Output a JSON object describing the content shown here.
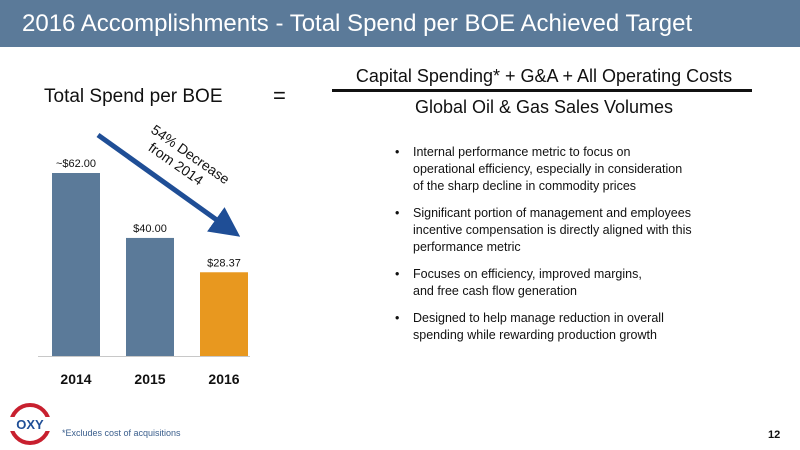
{
  "header": {
    "title": "2016 Accomplishments - Total Spend per BOE Achieved Target"
  },
  "formula": {
    "lhs": "Total Spend per BOE",
    "equals": "=",
    "numerator": "Capital Spending* + G&A + All Operating Costs",
    "denominator": "Global Oil & Gas Sales Volumes"
  },
  "chart_data": {
    "type": "bar",
    "title": "Total Spend per BOE",
    "categories": [
      "2014",
      "2015",
      "2016"
    ],
    "values": [
      62.0,
      40.0,
      28.37
    ],
    "value_labels": [
      "~$62.00",
      "$40.00",
      "$28.37"
    ],
    "colors": [
      "#5b7a99",
      "#5b7a99",
      "#e8981f"
    ],
    "annotation": "54% Decrease from 2014",
    "annotation_lines": [
      "54% Decrease",
      "from 2014"
    ],
    "arrow_color": "#1f4e96",
    "grid": false
  },
  "bullets": [
    [
      "Internal performance metric to focus on",
      "operational efficiency, especially in consideration",
      "of the sharp decline in commodity prices"
    ],
    [
      "Significant portion of management and employees",
      "incentive compensation is directly aligned with this",
      "performance metric"
    ],
    [
      "Focuses on efficiency, improved margins,",
      "and free cash flow generation"
    ],
    [
      "Designed to help manage reduction in overall",
      "spending while rewarding production growth"
    ]
  ],
  "bullet_marker": "•",
  "footnote": "*Excludes cost of acquisitions",
  "page_number": "12",
  "logo": {
    "text": "OXY",
    "icon": "oxy-logo"
  }
}
